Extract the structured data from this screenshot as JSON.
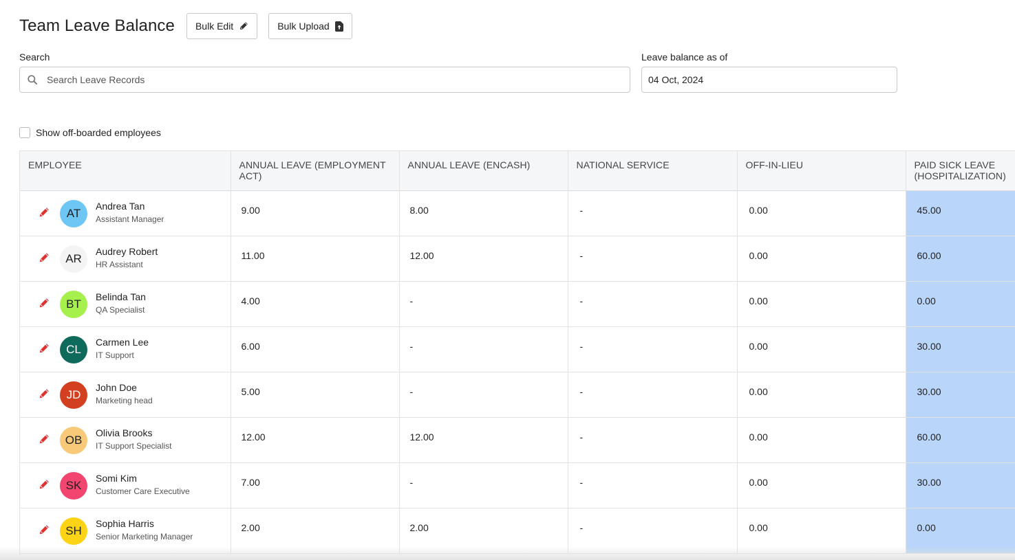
{
  "header": {
    "title": "Team Leave Balance",
    "bulk_edit_label": "Bulk Edit",
    "bulk_edit_icon": "pencil-icon",
    "bulk_upload_label": "Bulk Upload",
    "bulk_upload_icon": "file-upload-icon"
  },
  "search": {
    "label": "Search",
    "placeholder": "Search Leave Records",
    "value": "",
    "icon": "search-icon"
  },
  "balance_date": {
    "label": "Leave balance as of",
    "value": "04 Oct, 2024"
  },
  "filters": {
    "show_offboarded_label": "Show off-boarded employees",
    "show_offboarded_checked": false
  },
  "table": {
    "columns": [
      "EMPLOYEE",
      "ANNUAL LEAVE (EMPLOYMENT ACT)",
      "ANNUAL LEAVE (ENCASH)",
      "NATIONAL SERVICE",
      "OFF-IN-LIEU",
      "PAID SICK LEAVE (HOSPITALIZATION)"
    ],
    "highlight_color": "#b9d5f9",
    "rows": [
      {
        "initials": "AT",
        "avatar_color": "#6ec6f5",
        "avatar_text_color": "#222222",
        "name": "Andrea Tan",
        "role": "Assistant Manager",
        "annual_leave_ea": "9.00",
        "annual_leave_encash": "8.00",
        "national_service": "-",
        "off_in_lieu": "0.00",
        "paid_sick_hosp": "45.00"
      },
      {
        "initials": "AR",
        "avatar_color": "#f4f4f4",
        "avatar_text_color": "#222222",
        "name": "Audrey Robert",
        "role": "HR Assistant",
        "annual_leave_ea": "11.00",
        "annual_leave_encash": "12.00",
        "national_service": "-",
        "off_in_lieu": "0.00",
        "paid_sick_hosp": "60.00"
      },
      {
        "initials": "BT",
        "avatar_color": "#a6f04e",
        "avatar_text_color": "#222222",
        "name": "Belinda Tan",
        "role": "QA Specialist",
        "annual_leave_ea": "4.00",
        "annual_leave_encash": "-",
        "national_service": "-",
        "off_in_lieu": "0.00",
        "paid_sick_hosp": "0.00"
      },
      {
        "initials": "CL",
        "avatar_color": "#0e6b5c",
        "avatar_text_color": "#ffffff",
        "name": "Carmen Lee",
        "role": "IT Support",
        "annual_leave_ea": "6.00",
        "annual_leave_encash": "-",
        "national_service": "-",
        "off_in_lieu": "0.00",
        "paid_sick_hosp": "30.00"
      },
      {
        "initials": "JD",
        "avatar_color": "#d2401f",
        "avatar_text_color": "#ffffff",
        "name": "John Doe",
        "role": "Marketing head",
        "annual_leave_ea": "5.00",
        "annual_leave_encash": "-",
        "national_service": "-",
        "off_in_lieu": "0.00",
        "paid_sick_hosp": "30.00"
      },
      {
        "initials": "OB",
        "avatar_color": "#f9c97a",
        "avatar_text_color": "#222222",
        "name": "Olivia Brooks",
        "role": "IT Support Specialist",
        "annual_leave_ea": "12.00",
        "annual_leave_encash": "12.00",
        "national_service": "-",
        "off_in_lieu": "0.00",
        "paid_sick_hosp": "60.00"
      },
      {
        "initials": "SK",
        "avatar_color": "#f2456f",
        "avatar_text_color": "#222222",
        "name": "Somi Kim",
        "role": "Customer Care Executive",
        "annual_leave_ea": "7.00",
        "annual_leave_encash": "-",
        "national_service": "-",
        "off_in_lieu": "0.00",
        "paid_sick_hosp": "30.00"
      },
      {
        "initials": "SH",
        "avatar_color": "#fdd316",
        "avatar_text_color": "#222222",
        "name": "Sophia Harris",
        "role": "Senior Marketing Manager",
        "annual_leave_ea": "2.00",
        "annual_leave_encash": "2.00",
        "national_service": "-",
        "off_in_lieu": "0.00",
        "paid_sick_hosp": "0.00"
      }
    ]
  }
}
